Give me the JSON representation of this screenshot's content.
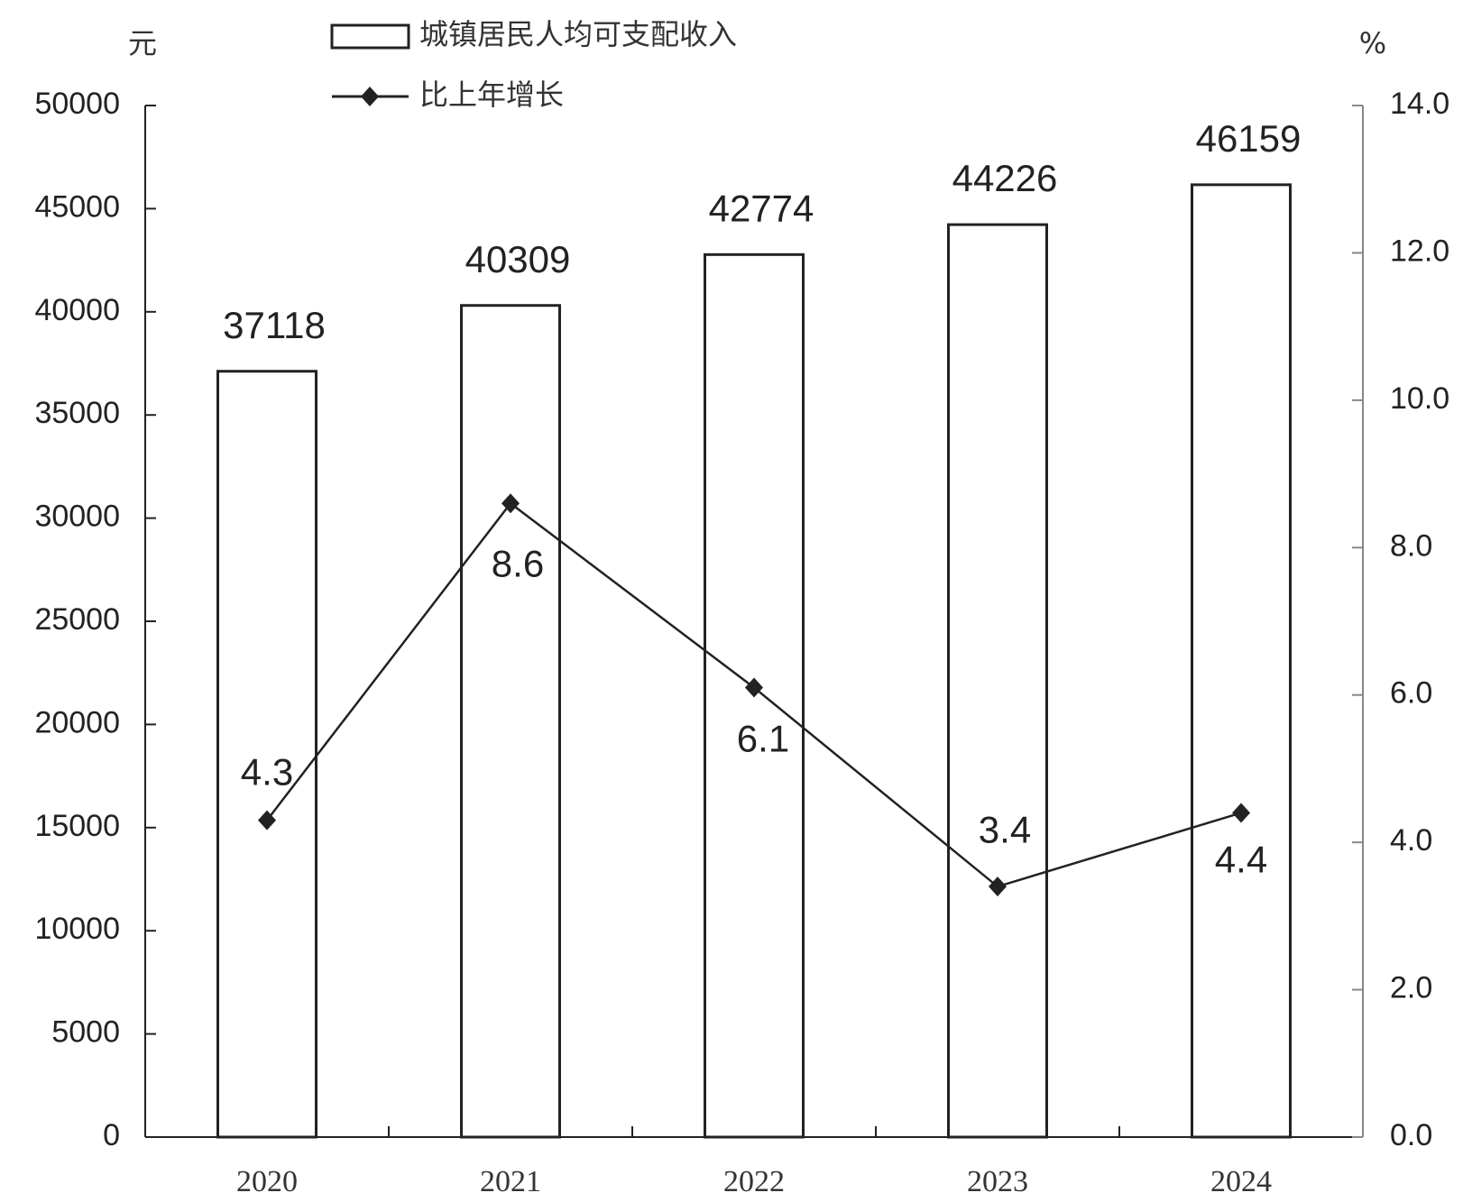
{
  "chart_data": {
    "type": "combo",
    "y_label": "元",
    "y2_label": "%",
    "categories": [
      "2020",
      "2021",
      "2022",
      "2023",
      "2024"
    ],
    "series": [
      {
        "name": "城镇居民人均可支配收入",
        "type": "bar",
        "color": "#ffffff",
        "values": [
          37118,
          40309,
          42774,
          44226,
          46159
        ]
      },
      {
        "name": "比上年增长",
        "type": "line",
        "axis": "y2",
        "color": "#222222",
        "values": [
          4.3,
          8.6,
          6.1,
          3.4,
          4.4
        ]
      }
    ],
    "ylim": [
      0,
      50000
    ],
    "yticks": [
      0,
      5000,
      10000,
      15000,
      20000,
      25000,
      30000,
      35000,
      40000,
      45000,
      50000
    ],
    "y2lim": [
      0,
      14
    ],
    "y2ticks": [
      {
        "value": 0,
        "label": "0.0"
      },
      {
        "value": 2,
        "label": "2.0"
      },
      {
        "value": 4,
        "label": "4.0"
      },
      {
        "value": 6,
        "label": "6.0"
      },
      {
        "value": 8,
        "label": "8.0"
      },
      {
        "value": 10,
        "label": "10.0"
      },
      {
        "value": 12,
        "label": "12.0"
      },
      {
        "value": 14,
        "label": "14.0"
      }
    ],
    "grid": false
  }
}
